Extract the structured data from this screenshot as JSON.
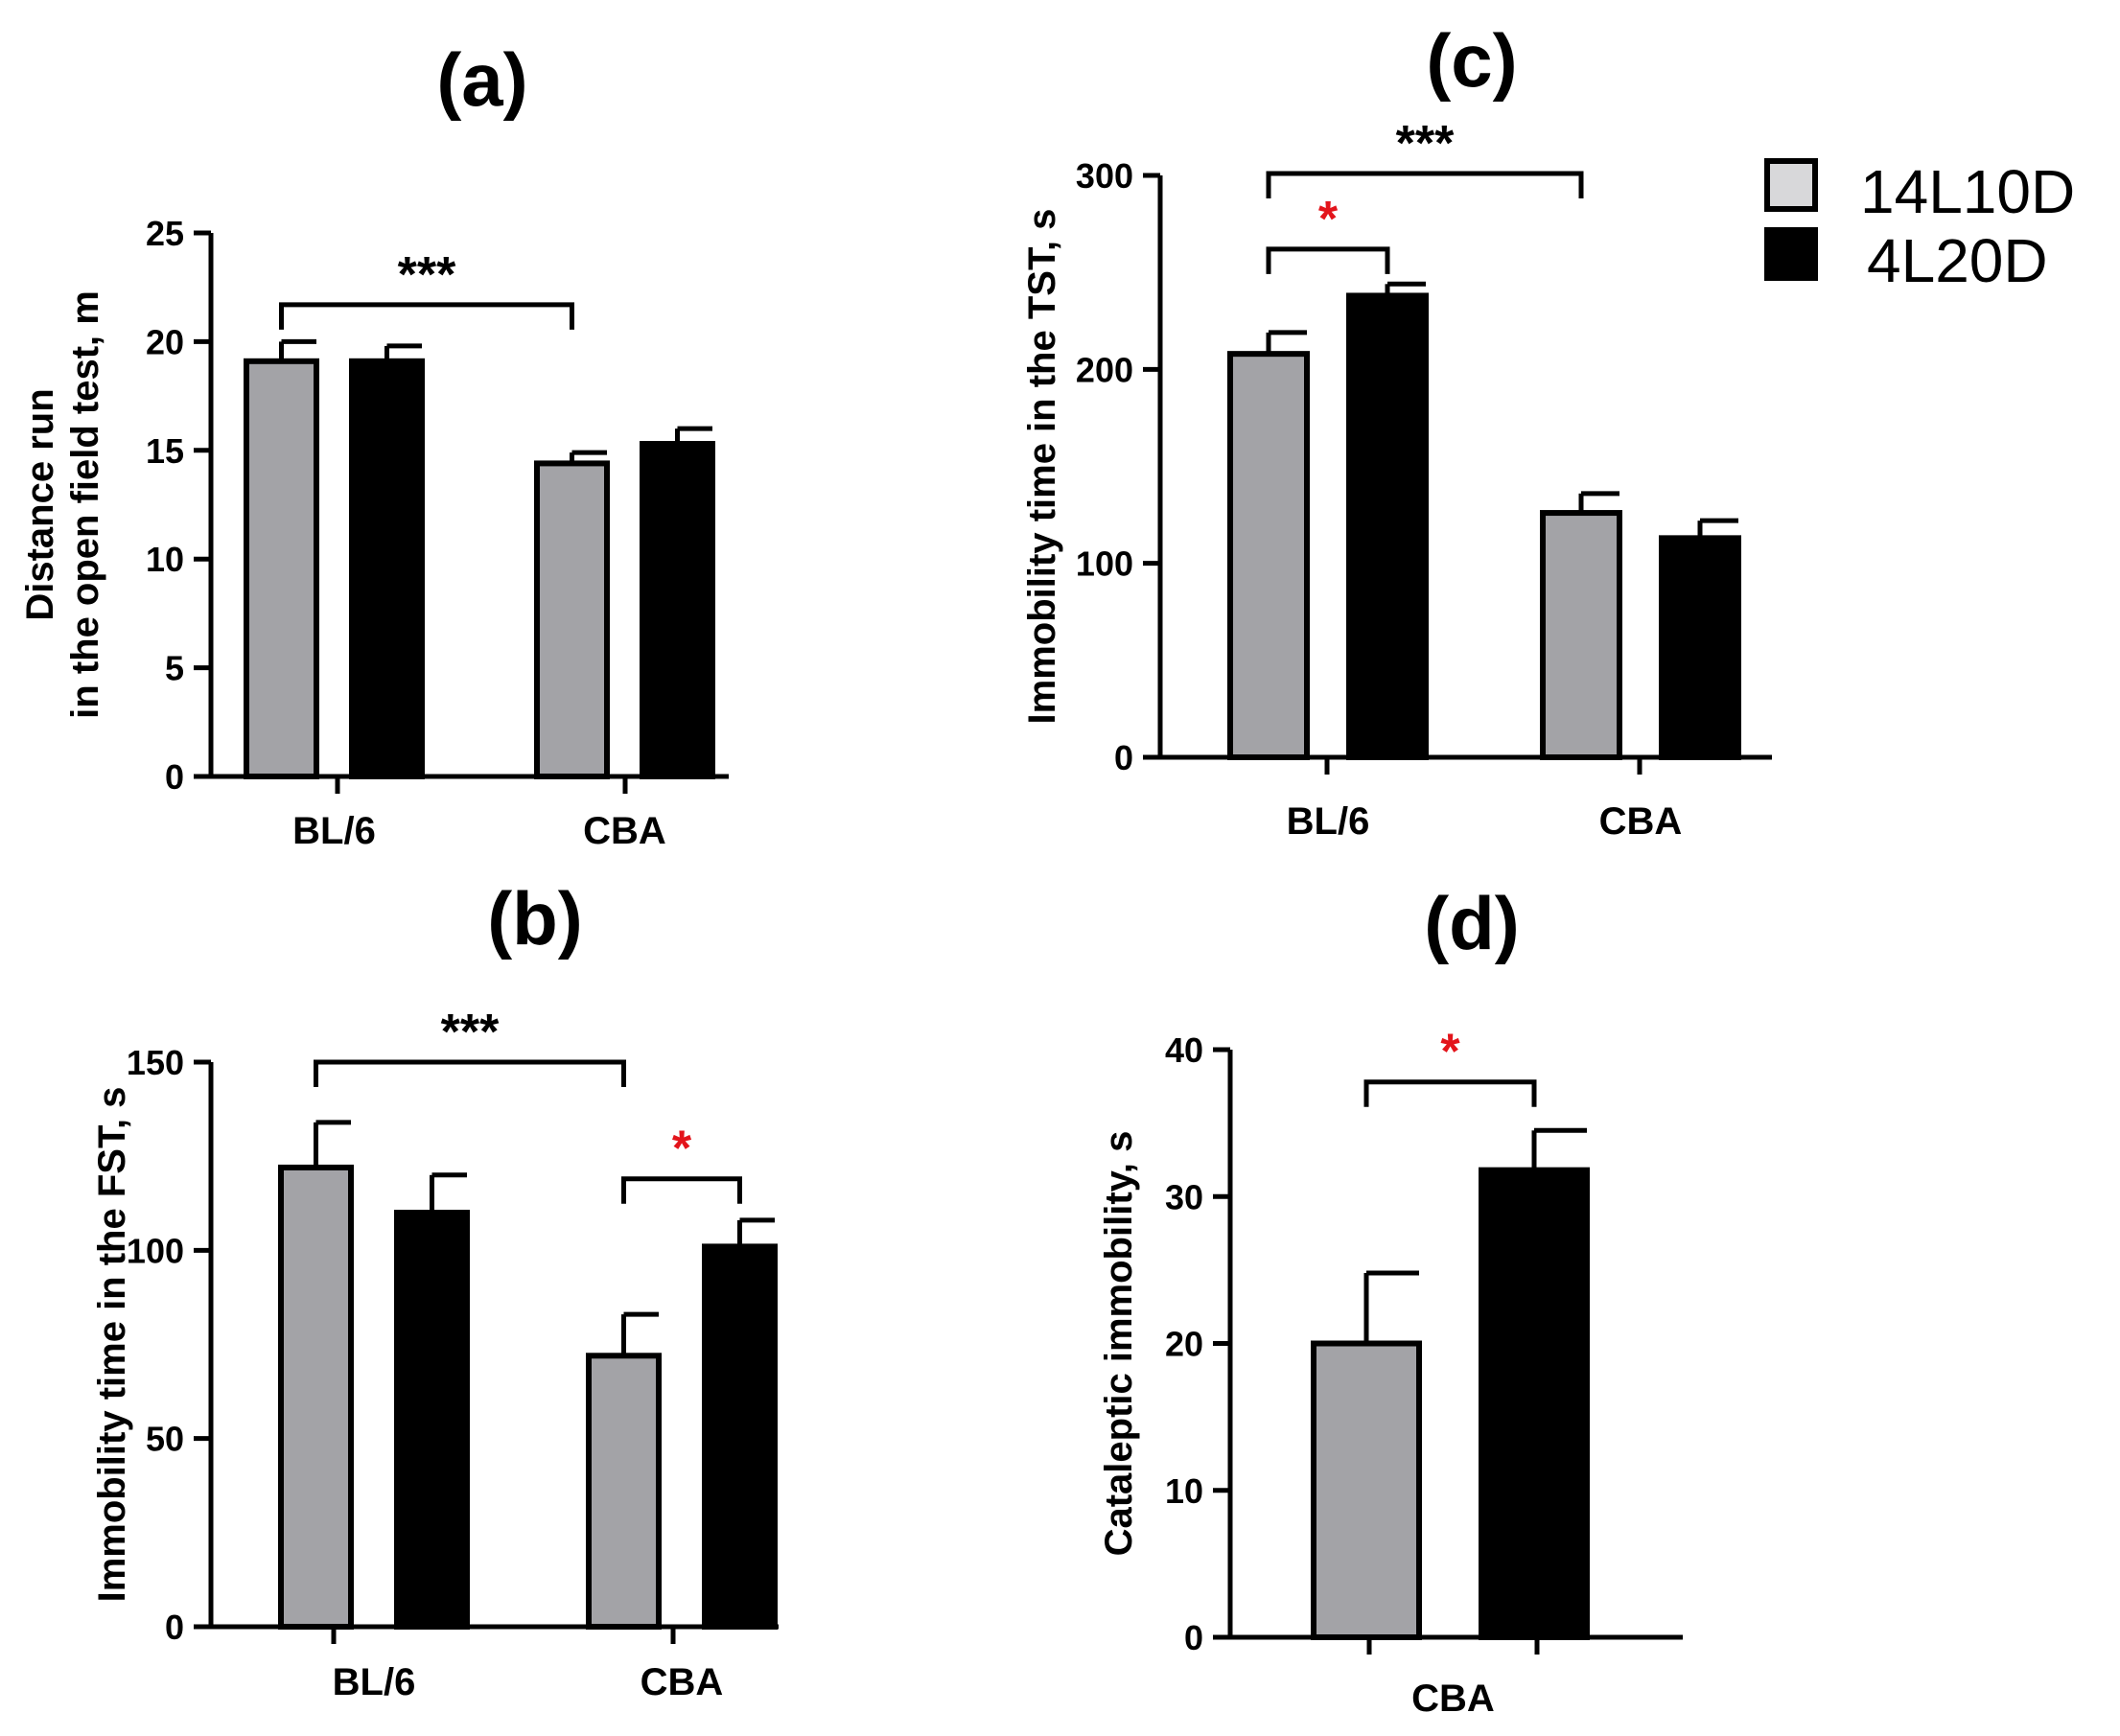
{
  "figure": {
    "legend": {
      "entries": [
        {
          "label": "14L10D",
          "color": "#a3a3a7"
        },
        {
          "label": "4L20D",
          "color": "#000000"
        }
      ]
    },
    "colors": {
      "series1": "#a3a3a7",
      "series2": "#000000",
      "axis": "#000000",
      "significance_red": "#e3141b",
      "significance_black": "#000000"
    }
  },
  "chart_data": [
    {
      "panel": "(a)",
      "type": "bar",
      "ylabel_lines": [
        "Distance run",
        "in the open field test, m"
      ],
      "categories": [
        "BL/6",
        "CBA"
      ],
      "ylim": [
        0,
        25
      ],
      "yticks": [
        0,
        5,
        10,
        15,
        20,
        25
      ],
      "series": [
        {
          "name": "14L10D",
          "values": [
            19.1,
            14.4
          ],
          "errors": [
            0.9,
            0.5
          ]
        },
        {
          "name": "4L20D",
          "values": [
            19.1,
            15.3
          ],
          "errors": [
            0.7,
            0.7
          ]
        }
      ],
      "significance": [
        {
          "from": [
            0,
            0
          ],
          "to": [
            1,
            0
          ],
          "label": "***",
          "level": 21.7,
          "color": "black"
        }
      ]
    },
    {
      "panel": "(b)",
      "type": "bar",
      "ylabel_lines": [
        "Immobility time in the FST, s"
      ],
      "categories": [
        "BL/6",
        "CBA"
      ],
      "ylim": [
        0,
        150
      ],
      "yticks": [
        0,
        50,
        100,
        150
      ],
      "series": [
        {
          "name": "14L10D",
          "values": [
            122,
            72
          ],
          "errors": [
            12,
            11
          ]
        },
        {
          "name": "4L20D",
          "values": [
            110,
            101
          ],
          "errors": [
            10,
            7
          ]
        }
      ],
      "significance": [
        {
          "from": [
            0,
            0
          ],
          "to": [
            1,
            0
          ],
          "label": "***",
          "level": 150,
          "color": "black"
        },
        {
          "from": [
            1,
            0
          ],
          "to": [
            1,
            1
          ],
          "label": "*",
          "level": 119,
          "color": "red"
        }
      ]
    },
    {
      "panel": "(c)",
      "type": "bar",
      "ylabel_lines": [
        "Immobility time in the TST, s"
      ],
      "categories": [
        "BL/6",
        "CBA"
      ],
      "ylim": [
        0,
        300
      ],
      "yticks": [
        0,
        100,
        200,
        300
      ],
      "series": [
        {
          "name": "14L10D",
          "values": [
            208,
            126
          ],
          "errors": [
            11,
            10
          ]
        },
        {
          "name": "4L20D",
          "values": [
            238,
            113
          ],
          "errors": [
            6,
            9
          ]
        }
      ],
      "significance": [
        {
          "from": [
            0,
            0
          ],
          "to": [
            1,
            0
          ],
          "label": "***",
          "level": 301,
          "color": "black"
        },
        {
          "from": [
            0,
            0
          ],
          "to": [
            0,
            1
          ],
          "label": "*",
          "level": 262,
          "color": "red"
        }
      ]
    },
    {
      "panel": "(d)",
      "type": "bar",
      "ylabel_lines": [
        "Cataleptic immobility, s"
      ],
      "categories": [
        "CBA"
      ],
      "ylim": [
        0,
        40
      ],
      "yticks": [
        0,
        10,
        20,
        30,
        40
      ],
      "series": [
        {
          "name": "14L10D",
          "values": [
            20
          ],
          "errors": [
            4.8
          ]
        },
        {
          "name": "4L20D",
          "values": [
            31.8
          ],
          "errors": [
            2.7
          ]
        }
      ],
      "significance": [
        {
          "from": [
            0,
            0
          ],
          "to": [
            0,
            1
          ],
          "label": "*",
          "level": 37.8,
          "color": "red"
        }
      ]
    }
  ]
}
